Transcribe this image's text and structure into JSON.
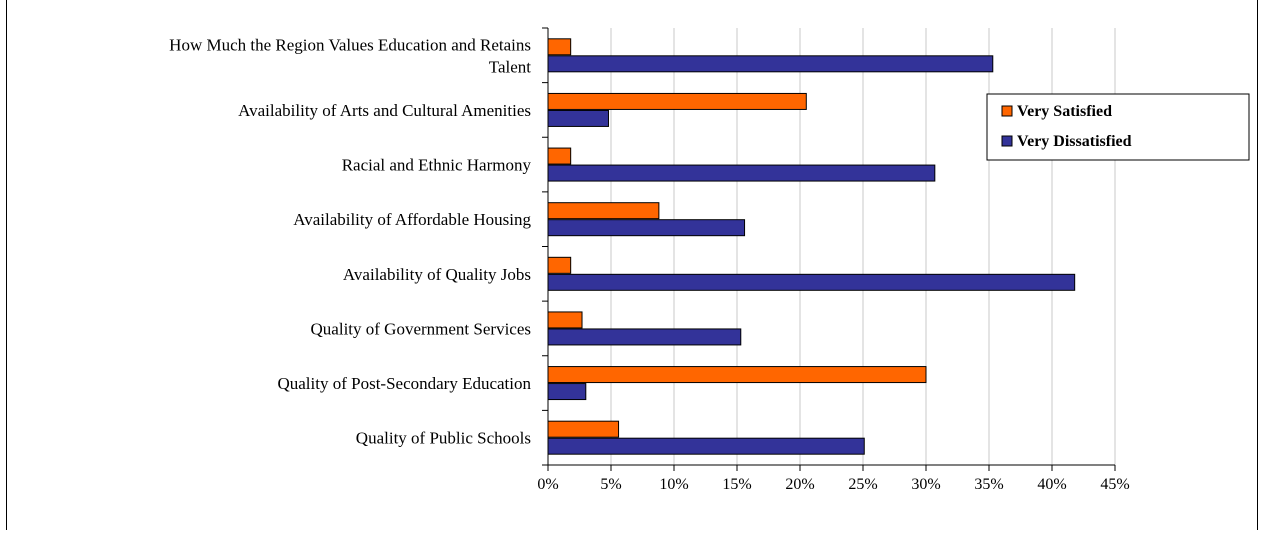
{
  "chart_data": {
    "type": "bar",
    "orientation": "horizontal",
    "categories": [
      "How Much the Region Values Education and Retains Talent",
      "Availability of Arts and Cultural Amenities",
      "Racial and Ethnic Harmony",
      "Availability of Affordable Housing",
      "Availability of Quality Jobs",
      "Quality of Government Services",
      "Quality of Post-Secondary Education",
      "Quality of Public Schools"
    ],
    "category_lines": [
      [
        "How Much the Region Values Education and Retains",
        "Talent"
      ],
      [
        "Availability of Arts and Cultural Amenities"
      ],
      [
        "Racial and Ethnic Harmony"
      ],
      [
        "Availability of Affordable Housing"
      ],
      [
        "Availability of Quality Jobs"
      ],
      [
        "Quality of Government Services"
      ],
      [
        "Quality of Post-Secondary Education"
      ],
      [
        "Quality of Public Schools"
      ]
    ],
    "series": [
      {
        "name": "Very Satisfied",
        "color": "#FF6600",
        "values": [
          1.8,
          20.5,
          1.8,
          8.8,
          1.8,
          2.7,
          30.0,
          5.6
        ]
      },
      {
        "name": "Very Dissatisfied",
        "color": "#333399",
        "values": [
          35.3,
          4.8,
          30.7,
          15.6,
          41.8,
          15.3,
          3.0,
          25.1
        ]
      }
    ],
    "xlim": [
      0,
      45
    ],
    "x_ticks": [
      0,
      5,
      10,
      15,
      20,
      25,
      30,
      35,
      40,
      45
    ],
    "x_tick_labels": [
      "0%",
      "5%",
      "10%",
      "15%",
      "20%",
      "25%",
      "30%",
      "35%",
      "40%",
      "45%"
    ],
    "grid": true,
    "legend_position": "top-right",
    "title": "",
    "xlabel": "",
    "ylabel": ""
  }
}
